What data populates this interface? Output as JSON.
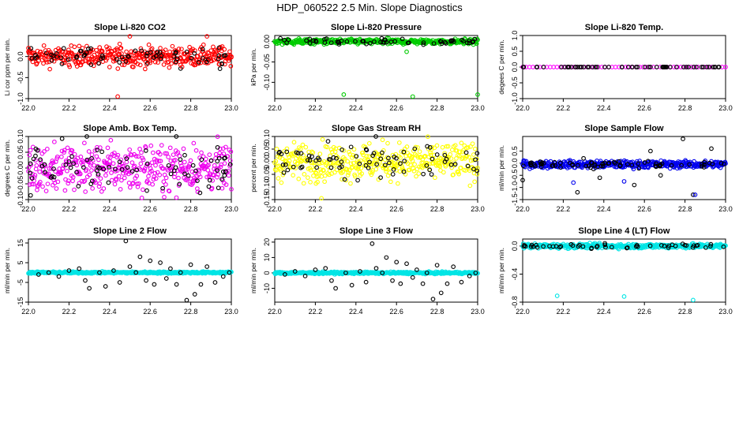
{
  "page_title": "HDP_060522  2.5 Min. Slope Diagnostics",
  "chart_data": [
    {
      "type": "scatter",
      "title": "Slope Li-820 CO2",
      "ylabel": "Li cor ppm per min.",
      "xlim": [
        22.0,
        23.0
      ],
      "ylim": [
        -1.0,
        0.5
      ],
      "xticks": [
        "22.0",
        "22.2",
        "22.4",
        "22.6",
        "22.8",
        "23.0"
      ],
      "yticks": [
        "-1.0",
        "-0.5",
        "0.0"
      ],
      "yticks_values": [
        -1.0,
        -0.5,
        0.0
      ],
      "colors": {
        "main": "#ff0000",
        "other": "#000000"
      },
      "spread": {
        "center": 0.0,
        "halfwidth": 0.28,
        "n_main": 380,
        "n_other": 70
      },
      "series": [
        {
          "points": [
            [
              22.0,
              0.2
            ],
            [
              22.05,
              -0.1
            ],
            [
              22.1,
              0.15
            ],
            [
              22.15,
              0.0
            ],
            [
              22.2,
              -0.2
            ],
            [
              22.25,
              0.25
            ],
            [
              22.3,
              -0.05
            ],
            [
              22.35,
              0.1
            ],
            [
              22.4,
              -0.25
            ],
            [
              22.45,
              0.3
            ],
            [
              22.5,
              -0.1
            ],
            [
              22.55,
              0.05
            ],
            [
              22.6,
              -0.15
            ],
            [
              22.65,
              0.2
            ],
            [
              22.7,
              0.0
            ],
            [
              22.75,
              -0.2
            ],
            [
              22.8,
              0.15
            ],
            [
              22.85,
              0.05
            ],
            [
              22.9,
              -0.1
            ],
            [
              22.95,
              0.2
            ],
            [
              23.0,
              0.0
            ]
          ],
          "color": "#ff0000"
        },
        {
          "points": [
            [
              22.44,
              -0.95
            ],
            [
              22.5,
              0.48
            ],
            [
              22.88,
              0.48
            ]
          ],
          "color": "#ff0000"
        }
      ]
    },
    {
      "type": "scatter",
      "title": "Slope Li-820 Pressure",
      "ylabel": "kPa per min.",
      "xlim": [
        22.0,
        23.0
      ],
      "ylim": [
        -0.14,
        0.015
      ],
      "xticks": [
        "22.0",
        "22.2",
        "22.4",
        "22.6",
        "22.8",
        "23.0"
      ],
      "yticks": [
        "-0.10",
        "-0.05",
        "0.00"
      ],
      "yticks_values": [
        -0.1,
        -0.05,
        0.0
      ],
      "colors": {
        "main": "#00cc00",
        "other": "#000000"
      },
      "spread": {
        "center": 0.0,
        "halfwidth": 0.008,
        "n_main": 380,
        "n_other": 60
      },
      "series": [
        {
          "points": [
            [
              22.34,
              -0.13
            ],
            [
              22.68,
              -0.135
            ],
            [
              23.0,
              -0.13
            ],
            [
              22.65,
              -0.025
            ]
          ],
          "color": "#00cc00"
        }
      ]
    },
    {
      "type": "scatter",
      "title": "Slope Li-820 Temp.",
      "ylabel": "degees C per min.",
      "xlim": [
        22.0,
        23.0
      ],
      "ylim": [
        -1.0,
        1.0
      ],
      "xticks": [
        "22.0",
        "22.2",
        "22.4",
        "22.6",
        "22.8",
        "23.0"
      ],
      "yticks": [
        "-1.0",
        "-0.5",
        "0.0",
        "0.5",
        "1.0"
      ],
      "yticks_values": [
        -1.0,
        -0.5,
        0.0,
        0.5,
        1.0
      ],
      "colors": {
        "main": "#ff00ff",
        "other": "#000000"
      },
      "spread": {
        "center": 0.0,
        "halfwidth": 0.0,
        "n_main": 60,
        "n_other": 60
      },
      "series": []
    },
    {
      "type": "scatter",
      "title": "Slope Amb. Box Temp.",
      "ylabel": "degrees C per min.",
      "xlim": [
        22.0,
        23.0
      ],
      "ylim": [
        -0.1,
        0.1
      ],
      "xticks": [
        "22.0",
        "22.2",
        "22.4",
        "22.6",
        "22.8",
        "23.0"
      ],
      "yticks": [
        "-0.10",
        "-0.05",
        "0.00",
        "0.05",
        "0.10"
      ],
      "yticks_values": [
        -0.1,
        -0.05,
        0.0,
        0.05,
        0.1
      ],
      "colors": {
        "main": "#ee00ee",
        "other": "#000000"
      },
      "spread": {
        "center": 0.0,
        "halfwidth": 0.09,
        "n_main": 400,
        "n_other": 80
      },
      "series": []
    },
    {
      "type": "scatter",
      "title": "Slope Gas Stream RH",
      "ylabel": "percent per min.",
      "xlim": [
        22.0,
        23.0
      ],
      "ylim": [
        -0.15,
        0.1
      ],
      "xticks": [
        "22.0",
        "22.2",
        "22.4",
        "22.6",
        "22.8",
        "23.0"
      ],
      "yticks": [
        "-0.15",
        "-0.10",
        "-0.05",
        "0.00",
        "0.05",
        "0.10"
      ],
      "yticks_values": [
        -0.15,
        -0.1,
        -0.05,
        0.0,
        0.05,
        0.1
      ],
      "colors": {
        "main": "#ffff00",
        "other": "#000000"
      },
      "spread": {
        "center": 0.0,
        "halfwidth": 0.09,
        "n_main": 400,
        "n_other": 80
      },
      "series": [
        {
          "points": [
            [
              22.23,
              -0.145
            ]
          ],
          "color": "#ffff00"
        }
      ]
    },
    {
      "type": "scatter",
      "title": "Slope Sample Flow",
      "ylabel": "ml/min per min.",
      "xlim": [
        22.0,
        23.0
      ],
      "ylim": [
        -1.5,
        1.1
      ],
      "xticks": [
        "22.0",
        "22.2",
        "22.4",
        "22.6",
        "22.8",
        "23.0"
      ],
      "yticks": [
        "-1.5",
        "-1.0",
        "-0.5",
        "0.0",
        "0.5"
      ],
      "yticks_values": [
        -1.5,
        -1.0,
        -0.5,
        0.0,
        0.5
      ],
      "colors": {
        "main": "#0000ee",
        "other": "#000000"
      },
      "spread": {
        "center": -0.05,
        "halfwidth": 0.18,
        "n_main": 400,
        "n_other": 70
      },
      "series": [
        {
          "points": [
            [
              22.79,
              1.0
            ],
            [
              22.84,
              -1.3
            ],
            [
              22.0,
              -0.7
            ],
            [
              22.27,
              -1.2
            ],
            [
              22.55,
              -0.9
            ],
            [
              22.38,
              -0.6
            ],
            [
              22.63,
              0.5
            ],
            [
              22.68,
              -0.5
            ],
            [
              22.93,
              0.6
            ],
            [
              22.3,
              0.2
            ]
          ],
          "color": "#000000"
        },
        {
          "points": [
            [
              22.85,
              -1.3
            ],
            [
              22.25,
              -0.8
            ],
            [
              22.5,
              -0.75
            ]
          ],
          "color": "#0000ee"
        }
      ]
    },
    {
      "type": "scatter",
      "title": "Slope Line 2 Flow",
      "ylabel": "ml/min per min.",
      "xlim": [
        22.0,
        23.0
      ],
      "ylim": [
        -15,
        17
      ],
      "xticks": [
        "22.0",
        "22.2",
        "22.4",
        "22.6",
        "22.8",
        "23.0"
      ],
      "yticks": [
        "-15",
        "-5",
        "5",
        "15"
      ],
      "yticks_values": [
        -15,
        -5,
        5,
        15
      ],
      "colors": {
        "main": "#00e5e5",
        "other": "#000000"
      },
      "spread": {
        "center": 0.0,
        "halfwidth": 0.6,
        "n_main": 400,
        "n_other": 0
      },
      "series": [
        {
          "points": [
            [
              22.05,
              -1
            ],
            [
              22.1,
              0
            ],
            [
              22.15,
              -2
            ],
            [
              22.2,
              1
            ],
            [
              22.25,
              2
            ],
            [
              22.28,
              -4
            ],
            [
              22.3,
              -8
            ],
            [
              22.35,
              0
            ],
            [
              22.38,
              -7
            ],
            [
              22.42,
              1
            ],
            [
              22.45,
              -5
            ],
            [
              22.48,
              16
            ],
            [
              22.5,
              3
            ],
            [
              22.53,
              0
            ],
            [
              22.55,
              8
            ],
            [
              22.58,
              -4
            ],
            [
              22.6,
              6
            ],
            [
              22.62,
              -6
            ],
            [
              22.65,
              5
            ],
            [
              22.68,
              -3
            ],
            [
              22.7,
              2
            ],
            [
              22.73,
              -6
            ],
            [
              22.75,
              0
            ],
            [
              22.78,
              -14
            ],
            [
              22.8,
              4
            ],
            [
              22.82,
              -11
            ],
            [
              22.85,
              -6
            ],
            [
              22.88,
              3
            ],
            [
              22.92,
              -5
            ],
            [
              22.96,
              -2
            ],
            [
              22.99,
              0
            ]
          ],
          "color": "#000000"
        }
      ]
    },
    {
      "type": "scatter",
      "title": "Slope Line 3 Flow",
      "ylabel": "ml/min per min.",
      "xlim": [
        22.0,
        23.0
      ],
      "ylim": [
        -19,
        22
      ],
      "xticks": [
        "22.0",
        "22.2",
        "22.4",
        "22.6",
        "22.8",
        "23.0"
      ],
      "yticks": [
        "-10",
        "0",
        "10",
        "20"
      ],
      "yticks_values": [
        -10,
        0,
        10,
        20
      ],
      "colors": {
        "main": "#00e5e5",
        "other": "#000000"
      },
      "spread": {
        "center": 0.0,
        "halfwidth": 0.8,
        "n_main": 400,
        "n_other": 0
      },
      "series": [
        {
          "points": [
            [
              22.05,
              -1
            ],
            [
              22.1,
              1
            ],
            [
              22.15,
              -2
            ],
            [
              22.2,
              2
            ],
            [
              22.25,
              3
            ],
            [
              22.28,
              -5
            ],
            [
              22.3,
              -10
            ],
            [
              22.35,
              0
            ],
            [
              22.38,
              -8
            ],
            [
              22.42,
              1
            ],
            [
              22.45,
              -6
            ],
            [
              22.48,
              19
            ],
            [
              22.5,
              3
            ],
            [
              22.53,
              0
            ],
            [
              22.55,
              10
            ],
            [
              22.58,
              -5
            ],
            [
              22.6,
              7
            ],
            [
              22.62,
              -7
            ],
            [
              22.65,
              6
            ],
            [
              22.68,
              -3
            ],
            [
              22.7,
              2
            ],
            [
              22.73,
              -7
            ],
            [
              22.75,
              0
            ],
            [
              22.78,
              -17
            ],
            [
              22.8,
              5
            ],
            [
              22.82,
              -13
            ],
            [
              22.85,
              -7
            ],
            [
              22.88,
              4
            ],
            [
              22.92,
              -6
            ],
            [
              22.96,
              -2
            ],
            [
              22.99,
              0
            ]
          ],
          "color": "#000000"
        }
      ]
    },
    {
      "type": "scatter",
      "title": "Slope Line 4 (LT) Flow",
      "ylabel": "ml/min per min.",
      "xlim": [
        22.0,
        23.0
      ],
      "ylim": [
        -0.8,
        0.1
      ],
      "xticks": [
        "22.0",
        "22.2",
        "22.4",
        "22.6",
        "22.8",
        "23.0"
      ],
      "yticks": [
        "-0.8",
        "-0.4",
        "0.0"
      ],
      "yticks_values": [
        -0.8,
        -0.4,
        0.0
      ],
      "colors": {
        "main": "#00e5e5",
        "other": "#000000"
      },
      "spread": {
        "center": 0.0,
        "halfwidth": 0.04,
        "n_main": 400,
        "n_other": 50
      },
      "series": [
        {
          "points": [
            [
              22.17,
              -0.71
            ],
            [
              22.5,
              -0.72
            ],
            [
              22.84,
              -0.77
            ]
          ],
          "color": "#00e5e5"
        }
      ]
    }
  ]
}
